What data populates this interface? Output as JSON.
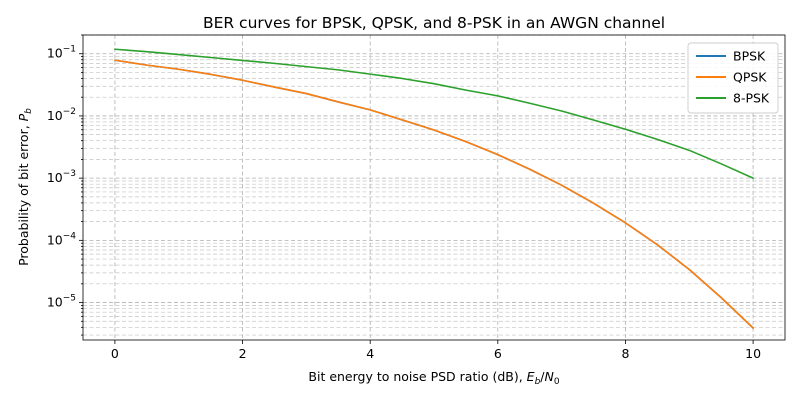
{
  "chart_data": {
    "type": "line",
    "title": "BER curves for BPSK, QPSK, and 8-PSK in an AWGN channel",
    "xlabel": {
      "text": "Bit energy to noise PSD ratio (dB), ",
      "math_base": "E",
      "math_sub": "b",
      "slash": "/",
      "math_base2": "N",
      "math_sub2": "0"
    },
    "ylabel": {
      "text": "Probability of bit error, ",
      "math_base": "P",
      "math_sub": "b"
    },
    "x_scale": "linear",
    "y_scale": "log",
    "xlim": [
      -0.5,
      10.5
    ],
    "ylim": [
      2.5e-06,
      0.2
    ],
    "x_ticks": [
      0,
      2,
      4,
      6,
      8,
      10
    ],
    "x_tick_labels": [
      "0",
      "2",
      "4",
      "6",
      "8",
      "10"
    ],
    "y_ticks": [
      1e-05,
      0.0001,
      0.001,
      0.01,
      0.1
    ],
    "y_tick_labels": [
      {
        "base": "10",
        "exp": "−5"
      },
      {
        "base": "10",
        "exp": "−4"
      },
      {
        "base": "10",
        "exp": "−3"
      },
      {
        "base": "10",
        "exp": "−2"
      },
      {
        "base": "10",
        "exp": "−1"
      }
    ],
    "grid": true,
    "grid_minor": true,
    "legend_position": "top-right",
    "series": [
      {
        "name": "BPSK",
        "color": "#1f77b4",
        "x": [
          0,
          0.5,
          1,
          1.5,
          2,
          2.5,
          3,
          3.5,
          4,
          4.5,
          5,
          5.5,
          6,
          6.5,
          7,
          7.5,
          8,
          8.5,
          9,
          9.5,
          10
        ],
        "y": [
          0.0786,
          0.0656,
          0.0563,
          0.0466,
          0.0375,
          0.0291,
          0.0229,
          0.0168,
          0.0125,
          0.00865,
          0.00595,
          0.00387,
          0.00239,
          0.00139,
          0.00077,
          0.000395,
          0.000191,
          8.5e-05,
          3.4e-05,
          1.2e-05,
          3.9e-06
        ]
      },
      {
        "name": "QPSK",
        "color": "#ff7f0e",
        "x": [
          0,
          0.5,
          1,
          1.5,
          2,
          2.5,
          3,
          3.5,
          4,
          4.5,
          5,
          5.5,
          6,
          6.5,
          7,
          7.5,
          8,
          8.5,
          9,
          9.5,
          10
        ],
        "y": [
          0.0786,
          0.0656,
          0.0563,
          0.0466,
          0.0375,
          0.0291,
          0.0229,
          0.0168,
          0.0125,
          0.00865,
          0.00595,
          0.00387,
          0.00239,
          0.00139,
          0.00077,
          0.000395,
          0.000191,
          8.5e-05,
          3.4e-05,
          1.2e-05,
          3.9e-06
        ]
      },
      {
        "name": "8-PSK",
        "color": "#2ca02c",
        "x": [
          0,
          0.5,
          1,
          1.5,
          2,
          2.5,
          3,
          3.5,
          4,
          4.5,
          5,
          5.5,
          6,
          6.5,
          7,
          7.5,
          8,
          8.5,
          9,
          9.5,
          10
        ],
        "y": [
          0.118,
          0.108,
          0.097,
          0.087,
          0.078,
          0.07,
          0.062,
          0.055,
          0.047,
          0.04,
          0.033,
          0.026,
          0.021,
          0.016,
          0.012,
          0.0086,
          0.0061,
          0.0042,
          0.0028,
          0.0017,
          0.001
        ]
      }
    ]
  }
}
